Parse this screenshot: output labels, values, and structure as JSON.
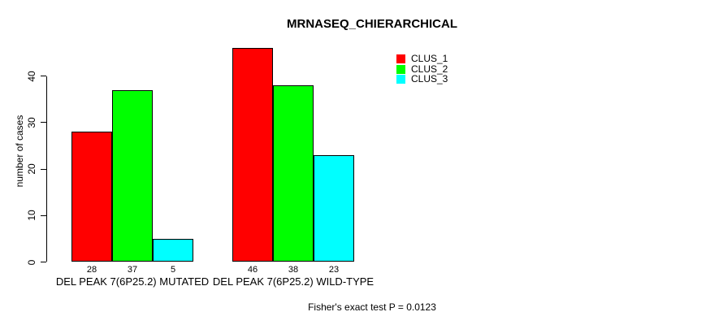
{
  "chart_data": {
    "type": "bar",
    "title": "MRNASEQ_CHIERARCHICAL",
    "ylabel": "number of cases",
    "xlabel": "",
    "categories": [
      "DEL PEAK 7(6P25.2) MUTATED",
      "DEL PEAK 7(6P25.2) WILD-TYPE"
    ],
    "series": [
      {
        "name": "CLUS_1",
        "color": "#ff0000",
        "values": [
          28,
          46
        ]
      },
      {
        "name": "CLUS_2",
        "color": "#00ff00",
        "values": [
          37,
          38
        ]
      },
      {
        "name": "CLUS_3",
        "color": "#00ffff",
        "values": [
          5,
          23
        ]
      }
    ],
    "bar_value_labels": [
      [
        28,
        37,
        5
      ],
      [
        46,
        38,
        23
      ]
    ],
    "yticks": [
      0,
      10,
      20,
      30,
      40
    ],
    "ylim": [
      0,
      46
    ],
    "grid": false,
    "legend_position": "top-right",
    "annotation": "Fisher's exact test P = 0.0123",
    "axis_color": "#000000",
    "bar_border_color": "#000000",
    "background": "#ffffff"
  }
}
